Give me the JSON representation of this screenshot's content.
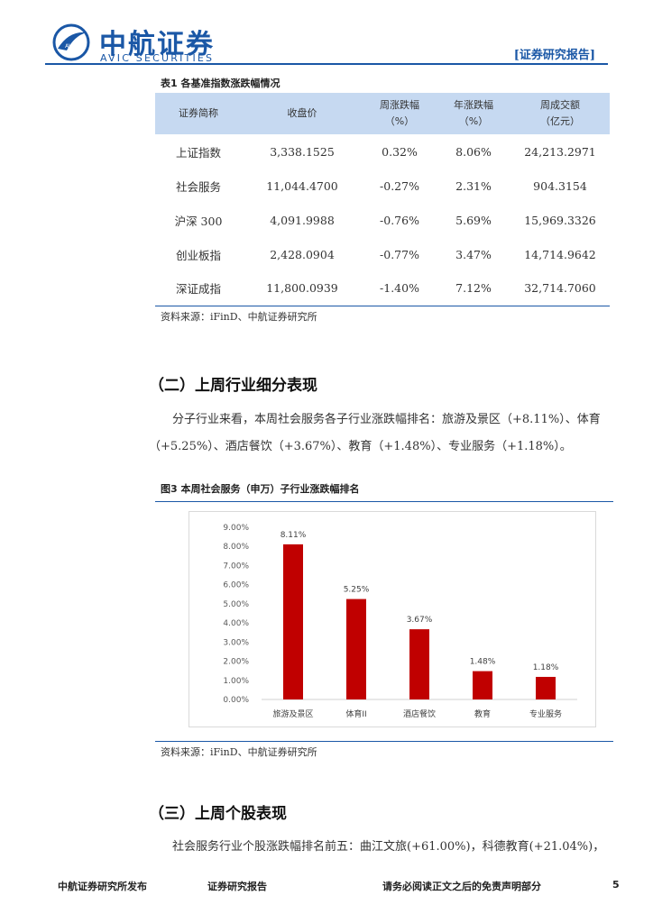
{
  "header": {
    "logo_cn": "中航证券",
    "logo_en": "AVIC SECURITIES",
    "logo_badge": "AVIC",
    "report_tag": "[证券研究报告]"
  },
  "table": {
    "title": "表1  各基准指数涨跌幅情况",
    "headers": [
      {
        "line1": "证券简称",
        "line2": ""
      },
      {
        "line1": "收盘价",
        "line2": ""
      },
      {
        "line1": "周涨跌幅",
        "line2": "（%）"
      },
      {
        "line1": "年涨跌幅",
        "line2": "（%）"
      },
      {
        "line1": "周成交额",
        "line2": "（亿元）"
      }
    ],
    "rows": [
      [
        "上证指数",
        "3,338.1525",
        "0.32%",
        "8.06%",
        "24,213.2971"
      ],
      [
        "社会服务",
        "11,044.4700",
        "-0.27%",
        "2.31%",
        "904.3154"
      ],
      [
        "沪深 300",
        "4,091.9988",
        "-0.76%",
        "5.69%",
        "15,969.3326"
      ],
      [
        "创业板指",
        "2,428.0904",
        "-0.77%",
        "3.47%",
        "14,714.9642"
      ],
      [
        "深证成指",
        "11,800.0939",
        "-1.40%",
        "7.12%",
        "32,714.7060"
      ]
    ],
    "source": "资料来源：iFinD、中航证券研究所"
  },
  "section2": {
    "title": "（二）上周行业细分表现",
    "para": "分子行业来看，本周社会服务各子行业涨跌幅排名：旅游及景区（+8.11%）、体育（+5.25%）、酒店餐饮（+3.67%）、教育（+1.48%）、专业服务（+1.18%）。"
  },
  "figure": {
    "title": "图3  本周社会服务（申万）子行业涨跌幅排名",
    "source": "资料来源：iFinD、中航证券研究所"
  },
  "chart_data": {
    "type": "bar",
    "categories": [
      "旅游及景区",
      "体育II",
      "酒店餐饮",
      "教育",
      "专业服务"
    ],
    "values": [
      8.11,
      5.25,
      3.67,
      1.48,
      1.18
    ],
    "data_labels": [
      "8.11%",
      "5.25%",
      "3.67%",
      "1.48%",
      "1.18%"
    ],
    "y_ticks": [
      "0.00%",
      "1.00%",
      "2.00%",
      "3.00%",
      "4.00%",
      "5.00%",
      "6.00%",
      "7.00%",
      "8.00%",
      "9.00%"
    ],
    "ylim": [
      0,
      9
    ],
    "bar_color": "#c00000",
    "grid": false,
    "title": "",
    "xlabel": "",
    "ylabel": ""
  },
  "section3": {
    "title": "（三）上周个股表现",
    "para": "社会服务行业个股涨跌幅排名前五：曲江文旅(+61.00%)，科德教育(+21.04%)，"
  },
  "footer": {
    "left": "中航证券研究所发布",
    "mid": "证券研究报告",
    "right": "请务必阅读正文之后的免责声明部分",
    "page": "5"
  }
}
